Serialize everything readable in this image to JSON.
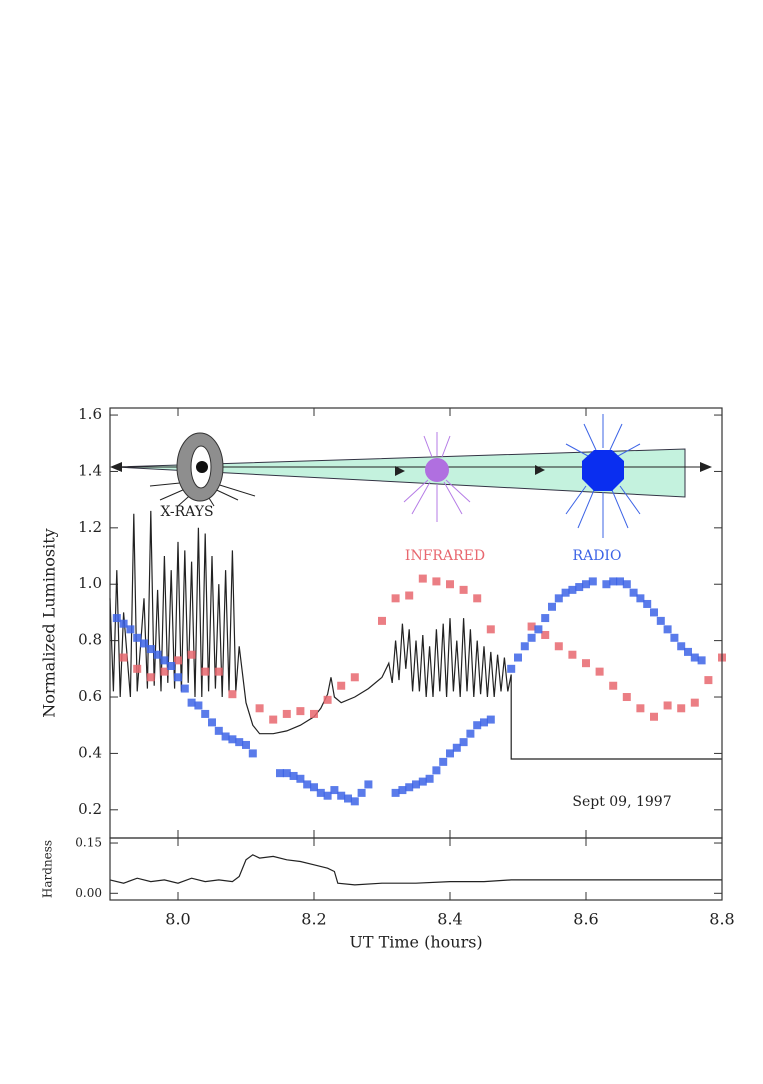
{
  "chart_data": [
    {
      "type": "scatter",
      "ylabel": "Normalized Luminosity",
      "annotation": "Sept 09, 1997",
      "xlim": [
        7.9,
        8.8
      ],
      "ylim": [
        0.1,
        1.625
      ],
      "yticks": [
        0.2,
        0.4,
        0.6,
        0.8,
        {
          "value": 1.0,
          "label": "1.0"
        },
        1.2,
        1.4,
        1.6
      ],
      "series": [
        {
          "name": "X-RAYS",
          "color": "#222222",
          "style": "line",
          "x": [
            7.9,
            7.905,
            7.91,
            7.915,
            7.92,
            7.93,
            7.935,
            7.94,
            7.95,
            7.955,
            7.96,
            7.965,
            7.97,
            7.975,
            7.98,
            7.985,
            7.99,
            7.995,
            8.0,
            8.005,
            8.01,
            8.015,
            8.02,
            8.025,
            8.03,
            8.035,
            8.04,
            8.045,
            8.05,
            8.055,
            8.06,
            8.065,
            8.07,
            8.075,
            8.08,
            8.085,
            8.09,
            8.1,
            8.11,
            8.12,
            8.14,
            8.16,
            8.18,
            8.2,
            8.21,
            8.22,
            8.225,
            8.23,
            8.24,
            8.26,
            8.28,
            8.3,
            8.31,
            8.315,
            8.32,
            8.325,
            8.33,
            8.335,
            8.34,
            8.345,
            8.35,
            8.355,
            8.36,
            8.365,
            8.37,
            8.375,
            8.38,
            8.385,
            8.39,
            8.395,
            8.4,
            8.405,
            8.41,
            8.415,
            8.42,
            8.425,
            8.43,
            8.435,
            8.44,
            8.445,
            8.45,
            8.455,
            8.46,
            8.465,
            8.47,
            8.475,
            8.48,
            8.485,
            8.49,
            8.49,
            8.8
          ],
          "values": [
            0.95,
            0.62,
            1.05,
            0.6,
            0.9,
            0.6,
            1.25,
            0.62,
            0.95,
            0.63,
            1.26,
            0.64,
            0.98,
            0.62,
            1.1,
            0.65,
            1.05,
            0.63,
            1.15,
            0.62,
            1.12,
            0.65,
            1.08,
            0.6,
            1.2,
            0.6,
            1.18,
            0.62,
            1.1,
            0.63,
            1.0,
            0.6,
            1.05,
            0.62,
            1.12,
            0.62,
            0.78,
            0.58,
            0.5,
            0.47,
            0.47,
            0.48,
            0.5,
            0.53,
            0.56,
            0.61,
            0.67,
            0.6,
            0.58,
            0.6,
            0.63,
            0.67,
            0.72,
            0.65,
            0.8,
            0.66,
            0.86,
            0.7,
            0.84,
            0.62,
            0.8,
            0.62,
            0.82,
            0.6,
            0.78,
            0.6,
            0.84,
            0.62,
            0.86,
            0.6,
            0.88,
            0.62,
            0.8,
            0.6,
            0.88,
            0.62,
            0.84,
            0.6,
            0.8,
            0.61,
            0.78,
            0.6,
            0.76,
            0.6,
            0.75,
            0.62,
            0.74,
            0.62,
            0.68,
            0.38,
            0.38
          ]
        },
        {
          "name": "INFRARED",
          "color": "#e8676f",
          "style": "marker",
          "x": [
            7.92,
            7.94,
            7.96,
            7.98,
            8.0,
            8.02,
            8.04,
            8.06,
            8.08,
            8.12,
            8.14,
            8.16,
            8.18,
            8.2,
            8.22,
            8.24,
            8.26,
            8.3,
            8.32,
            8.34,
            8.36,
            8.38,
            8.4,
            8.42,
            8.44,
            8.46,
            8.52,
            8.54,
            8.56,
            8.58,
            8.6,
            8.62,
            8.64,
            8.66,
            8.68,
            8.7,
            8.72,
            8.74,
            8.76,
            8.78,
            8.8
          ],
          "values": [
            0.74,
            0.7,
            0.67,
            0.69,
            0.73,
            0.75,
            0.69,
            0.69,
            0.61,
            0.56,
            0.52,
            0.54,
            0.55,
            0.54,
            0.59,
            0.64,
            0.67,
            0.87,
            0.95,
            0.96,
            1.02,
            1.01,
            1.0,
            0.98,
            0.95,
            0.84,
            0.85,
            0.82,
            0.78,
            0.75,
            0.72,
            0.69,
            0.64,
            0.6,
            0.56,
            0.53,
            0.57,
            0.56,
            0.58,
            0.66,
            0.74
          ]
        },
        {
          "name": "RADIO",
          "color": "#3d64e6",
          "style": "marker",
          "x": [
            7.91,
            7.92,
            7.93,
            7.94,
            7.95,
            7.96,
            7.97,
            7.98,
            7.99,
            8.0,
            8.01,
            8.02,
            8.03,
            8.04,
            8.05,
            8.06,
            8.07,
            8.08,
            8.09,
            8.1,
            8.11,
            8.15,
            8.16,
            8.17,
            8.18,
            8.19,
            8.2,
            8.21,
            8.22,
            8.23,
            8.24,
            8.25,
            8.26,
            8.27,
            8.28,
            8.32,
            8.33,
            8.34,
            8.35,
            8.36,
            8.37,
            8.38,
            8.39,
            8.4,
            8.41,
            8.42,
            8.43,
            8.44,
            8.45,
            8.46,
            8.49,
            8.5,
            8.51,
            8.52,
            8.53,
            8.54,
            8.55,
            8.56,
            8.57,
            8.58,
            8.59,
            8.6,
            8.61,
            8.63,
            8.64,
            8.65,
            8.66,
            8.67,
            8.68,
            8.69,
            8.7,
            8.71,
            8.72,
            8.73,
            8.74,
            8.75,
            8.76,
            8.77
          ],
          "values": [
            0.88,
            0.86,
            0.84,
            0.81,
            0.79,
            0.77,
            0.75,
            0.73,
            0.71,
            0.67,
            0.63,
            0.58,
            0.57,
            0.54,
            0.51,
            0.48,
            0.46,
            0.45,
            0.44,
            0.43,
            0.4,
            0.33,
            0.33,
            0.32,
            0.31,
            0.29,
            0.28,
            0.26,
            0.25,
            0.27,
            0.25,
            0.24,
            0.23,
            0.26,
            0.29,
            0.26,
            0.27,
            0.28,
            0.29,
            0.3,
            0.31,
            0.34,
            0.37,
            0.4,
            0.42,
            0.44,
            0.47,
            0.5,
            0.51,
            0.52,
            0.7,
            0.74,
            0.78,
            0.81,
            0.84,
            0.88,
            0.92,
            0.95,
            0.97,
            0.98,
            0.99,
            1.0,
            1.01,
            1.0,
            1.01,
            1.01,
            1.0,
            0.97,
            0.95,
            0.93,
            0.9,
            0.87,
            0.84,
            0.81,
            0.78,
            0.76,
            0.74,
            0.73
          ]
        }
      ]
    },
    {
      "type": "line",
      "ylabel": "Hardness",
      "xlabel": "UT Time (hours)",
      "xlim": [
        7.9,
        8.8
      ],
      "ylim": [
        -0.02,
        0.165
      ],
      "xticks": [
        {
          "value": 8.0,
          "label": "8.0"
        },
        8.2,
        8.4,
        8.6,
        8.8
      ],
      "yticks": [
        {
          "value": 0.0,
          "label": "0.00"
        },
        0.15
      ],
      "series": [
        {
          "color": "#222222",
          "x": [
            7.9,
            7.92,
            7.94,
            7.96,
            7.98,
            8.0,
            8.02,
            8.04,
            8.06,
            8.08,
            8.09,
            8.1,
            8.11,
            8.12,
            8.14,
            8.16,
            8.18,
            8.2,
            8.22,
            8.23,
            8.235,
            8.26,
            8.3,
            8.35,
            8.4,
            8.45,
            8.49,
            8.8
          ],
          "values": [
            0.04,
            0.03,
            0.045,
            0.035,
            0.04,
            0.03,
            0.045,
            0.035,
            0.04,
            0.035,
            0.05,
            0.1,
            0.115,
            0.105,
            0.11,
            0.1,
            0.095,
            0.085,
            0.075,
            0.065,
            0.03,
            0.025,
            0.03,
            0.03,
            0.035,
            0.035,
            0.04,
            0.04
          ]
        }
      ]
    }
  ]
}
